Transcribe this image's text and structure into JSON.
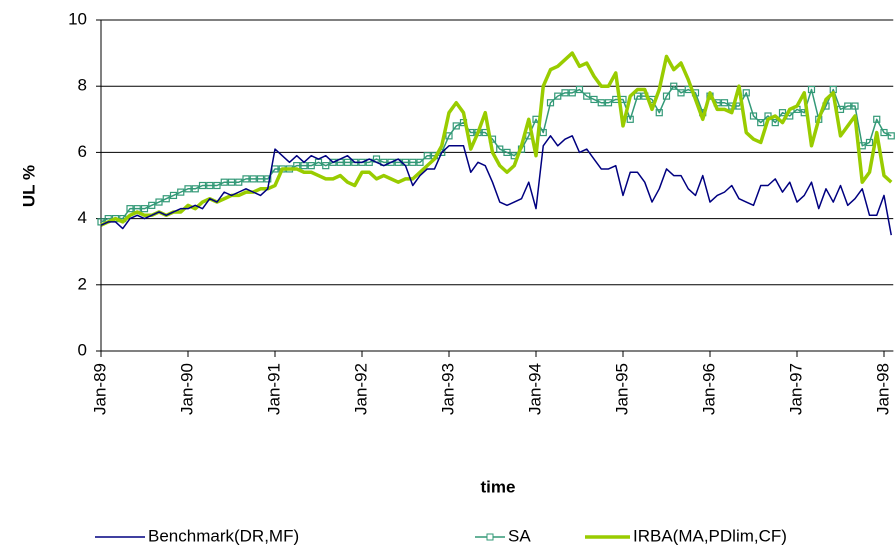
{
  "chart_data": {
    "type": "line",
    "x_label": "time",
    "y_label": "UL %",
    "categories": [
      "Jan-89",
      null,
      null,
      null,
      null,
      null,
      null,
      null,
      null,
      null,
      null,
      null,
      "Jan-90",
      null,
      null,
      null,
      null,
      null,
      null,
      null,
      null,
      null,
      null,
      null,
      "Jan-91",
      null,
      null,
      null,
      null,
      null,
      null,
      null,
      null,
      null,
      null,
      null,
      "Jan-92",
      null,
      null,
      null,
      null,
      null,
      null,
      null,
      null,
      null,
      null,
      null,
      "Jan-93",
      null,
      null,
      null,
      null,
      null,
      null,
      null,
      null,
      null,
      null,
      null,
      "Jan-94",
      null,
      null,
      null,
      null,
      null,
      null,
      null,
      null,
      null,
      null,
      null,
      "Jan-95",
      null,
      null,
      null,
      null,
      null,
      null,
      null,
      null,
      null,
      null,
      null,
      "Jan-96",
      null,
      null,
      null,
      null,
      null,
      null,
      null,
      null,
      null,
      null,
      null,
      "Jan-97",
      null,
      null,
      null,
      null,
      null,
      null,
      null,
      null,
      null,
      null,
      null,
      "Jan-98",
      null
    ],
    "series": [
      {
        "name": "Benchmark(DR,MF)",
        "color": "#000080",
        "values": [
          3.8,
          3.9,
          3.9,
          3.7,
          4.0,
          4.1,
          4.0,
          4.1,
          4.2,
          4.1,
          4.2,
          4.3,
          4.3,
          4.4,
          4.3,
          4.6,
          4.5,
          4.8,
          4.7,
          4.8,
          4.9,
          4.8,
          4.7,
          4.9,
          6.1,
          5.9,
          5.7,
          5.9,
          5.7,
          5.9,
          5.8,
          5.9,
          5.7,
          5.8,
          5.9,
          5.7,
          5.7,
          5.8,
          5.7,
          5.6,
          5.7,
          5.8,
          5.6,
          5.0,
          5.3,
          5.5,
          5.5,
          6.0,
          6.2,
          6.2,
          6.2,
          5.4,
          5.7,
          5.6,
          5.1,
          4.5,
          4.4,
          4.5,
          4.6,
          5.1,
          4.3,
          6.2,
          6.5,
          6.2,
          6.4,
          6.5,
          6.0,
          6.1,
          5.8,
          5.5,
          5.5,
          5.6,
          4.7,
          5.4,
          5.4,
          5.1,
          4.5,
          4.9,
          5.5,
          5.3,
          5.3,
          4.9,
          4.7,
          5.3,
          4.5,
          4.7,
          4.8,
          5.0,
          4.6,
          4.5,
          4.4,
          5.0,
          5.0,
          5.2,
          4.8,
          5.1,
          4.5,
          4.7,
          5.1,
          4.3,
          4.9,
          4.5,
          5.0,
          4.4,
          4.6,
          4.9,
          4.1,
          4.1,
          4.7,
          3.5
        ]
      },
      {
        "name": "SA",
        "color": "#339977",
        "values": [
          3.9,
          4.0,
          4.0,
          4.0,
          4.3,
          4.3,
          4.3,
          4.4,
          4.5,
          4.6,
          4.7,
          4.8,
          4.9,
          4.9,
          5.0,
          5.0,
          5.0,
          5.1,
          5.1,
          5.1,
          5.2,
          5.2,
          5.2,
          5.2,
          5.5,
          5.5,
          5.5,
          5.6,
          5.6,
          5.6,
          5.7,
          5.6,
          5.7,
          5.7,
          5.7,
          5.7,
          5.7,
          5.7,
          5.8,
          5.7,
          5.7,
          5.7,
          5.7,
          5.7,
          5.7,
          5.9,
          5.9,
          6.0,
          6.5,
          6.8,
          6.9,
          6.6,
          6.6,
          6.6,
          6.4,
          6.1,
          6.0,
          5.9,
          6.1,
          6.5,
          7.0,
          6.6,
          7.5,
          7.7,
          7.8,
          7.8,
          7.9,
          7.7,
          7.6,
          7.5,
          7.5,
          7.6,
          7.6,
          7.0,
          7.7,
          7.7,
          7.6,
          7.2,
          7.7,
          8.0,
          7.8,
          7.9,
          7.8,
          7.2,
          7.7,
          7.5,
          7.5,
          7.4,
          7.4,
          7.8,
          7.1,
          6.9,
          7.1,
          6.9,
          7.2,
          7.1,
          7.3,
          7.2,
          7.9,
          7.0,
          7.4,
          7.9,
          7.3,
          7.4,
          7.4,
          6.2,
          6.3,
          7.0,
          6.6,
          6.5
        ]
      },
      {
        "name": "IRBA(MA,PDlim,CF)",
        "color": "#99cc00",
        "values": [
          3.8,
          3.9,
          4.0,
          3.9,
          4.1,
          4.2,
          4.1,
          4.1,
          4.2,
          4.1,
          4.2,
          4.2,
          4.4,
          4.3,
          4.5,
          4.6,
          4.5,
          4.6,
          4.7,
          4.7,
          4.8,
          4.8,
          4.9,
          4.9,
          5.0,
          5.5,
          5.5,
          5.5,
          5.4,
          5.4,
          5.3,
          5.2,
          5.2,
          5.3,
          5.1,
          5.0,
          5.4,
          5.4,
          5.2,
          5.3,
          5.2,
          5.1,
          5.2,
          5.2,
          5.4,
          5.6,
          5.8,
          6.2,
          7.2,
          7.5,
          7.2,
          6.1,
          6.6,
          7.2,
          6.0,
          5.6,
          5.4,
          5.6,
          6.2,
          7.0,
          5.9,
          8.0,
          8.5,
          8.6,
          8.8,
          9.0,
          8.6,
          8.7,
          8.3,
          8.0,
          8.0,
          8.4,
          6.8,
          7.7,
          7.9,
          7.9,
          7.3,
          7.9,
          8.9,
          8.5,
          8.7,
          8.2,
          7.6,
          7.0,
          7.8,
          7.3,
          7.3,
          7.2,
          8.0,
          6.6,
          6.4,
          6.3,
          7.0,
          7.1,
          6.9,
          7.3,
          7.4,
          7.8,
          6.2,
          7.0,
          7.6,
          7.8,
          6.5,
          6.8,
          7.1,
          5.1,
          5.4,
          6.6,
          5.3,
          5.1
        ]
      }
    ],
    "ylim": [
      0,
      10
    ],
    "yticks": [
      0,
      2,
      4,
      6,
      8,
      10
    ],
    "grid": true,
    "legend": "bottom"
  }
}
